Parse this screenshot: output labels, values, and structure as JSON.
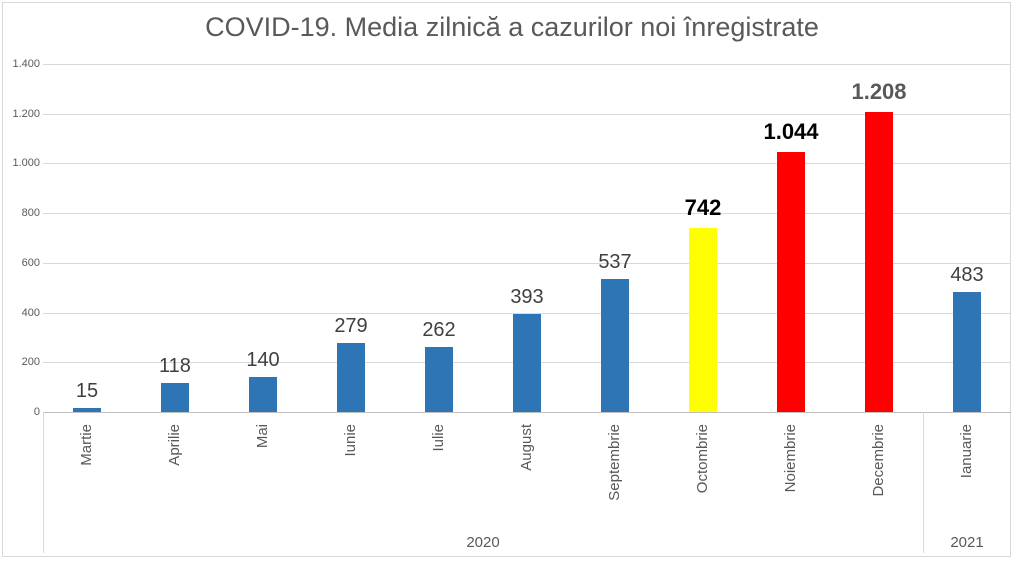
{
  "chart_data": {
    "type": "bar",
    "title": "COVID-19. Media zilnică a cazurilor noi înregistrate",
    "xlabel": "",
    "ylabel": "",
    "ylim": [
      0,
      1400
    ],
    "ytick_values": [
      0,
      200,
      400,
      600,
      800,
      1000,
      1200,
      1400
    ],
    "ytick_labels": [
      "0",
      "200",
      "400",
      "600",
      "800",
      "1.000",
      "1.200",
      "1.400"
    ],
    "grid": true,
    "legend": "none",
    "categories": [
      "Martie",
      "Aprilie",
      "Mai",
      "Iunie",
      "Iulie",
      "August",
      "Septembrie",
      "Octombrie",
      "Noiembrie",
      "Decembrie",
      "Ianuarie"
    ],
    "values": [
      15,
      118,
      140,
      279,
      262,
      393,
      537,
      742,
      1044,
      1208,
      483
    ],
    "bars": [
      {
        "category": "Martie",
        "value": 15,
        "label": "15",
        "color": "#2E75B6",
        "label_color": "#404040",
        "label_bold": false
      },
      {
        "category": "Aprilie",
        "value": 118,
        "label": "118",
        "color": "#2E75B6",
        "label_color": "#404040",
        "label_bold": false
      },
      {
        "category": "Mai",
        "value": 140,
        "label": "140",
        "color": "#2E75B6",
        "label_color": "#404040",
        "label_bold": false
      },
      {
        "category": "Iunie",
        "value": 279,
        "label": "279",
        "color": "#2E75B6",
        "label_color": "#404040",
        "label_bold": false
      },
      {
        "category": "Iulie",
        "value": 262,
        "label": "262",
        "color": "#2E75B6",
        "label_color": "#404040",
        "label_bold": false
      },
      {
        "category": "August",
        "value": 393,
        "label": "393",
        "color": "#2E75B6",
        "label_color": "#404040",
        "label_bold": false
      },
      {
        "category": "Septembrie",
        "value": 537,
        "label": "537",
        "color": "#2E75B6",
        "label_color": "#404040",
        "label_bold": false
      },
      {
        "category": "Octombrie",
        "value": 742,
        "label": "742",
        "color": "#FFFF00",
        "label_color": "#000000",
        "label_bold": true
      },
      {
        "category": "Noiembrie",
        "value": 1044,
        "label": "1.044",
        "color": "#FF0000",
        "label_color": "#000000",
        "label_bold": true
      },
      {
        "category": "Decembrie",
        "value": 1208,
        "label": "1.208",
        "color": "#FF0000",
        "label_color": "#595959",
        "label_bold": true
      },
      {
        "category": "Ianuarie",
        "value": 483,
        "label": "483",
        "color": "#2E75B6",
        "label_color": "#404040",
        "label_bold": false
      }
    ],
    "axis_groups": [
      {
        "label": "2020",
        "start_index": 0,
        "span": 10
      },
      {
        "label": "2021",
        "start_index": 10,
        "span": 1
      }
    ],
    "colors": {
      "bar_blue": "#2E75B6",
      "bar_yellow": "#FFFF00",
      "bar_red": "#FF0000",
      "gridline": "#D9D9D9",
      "axis_line": "#BFBFBF",
      "text_gray": "#595959",
      "label_gray": "#404040"
    }
  }
}
